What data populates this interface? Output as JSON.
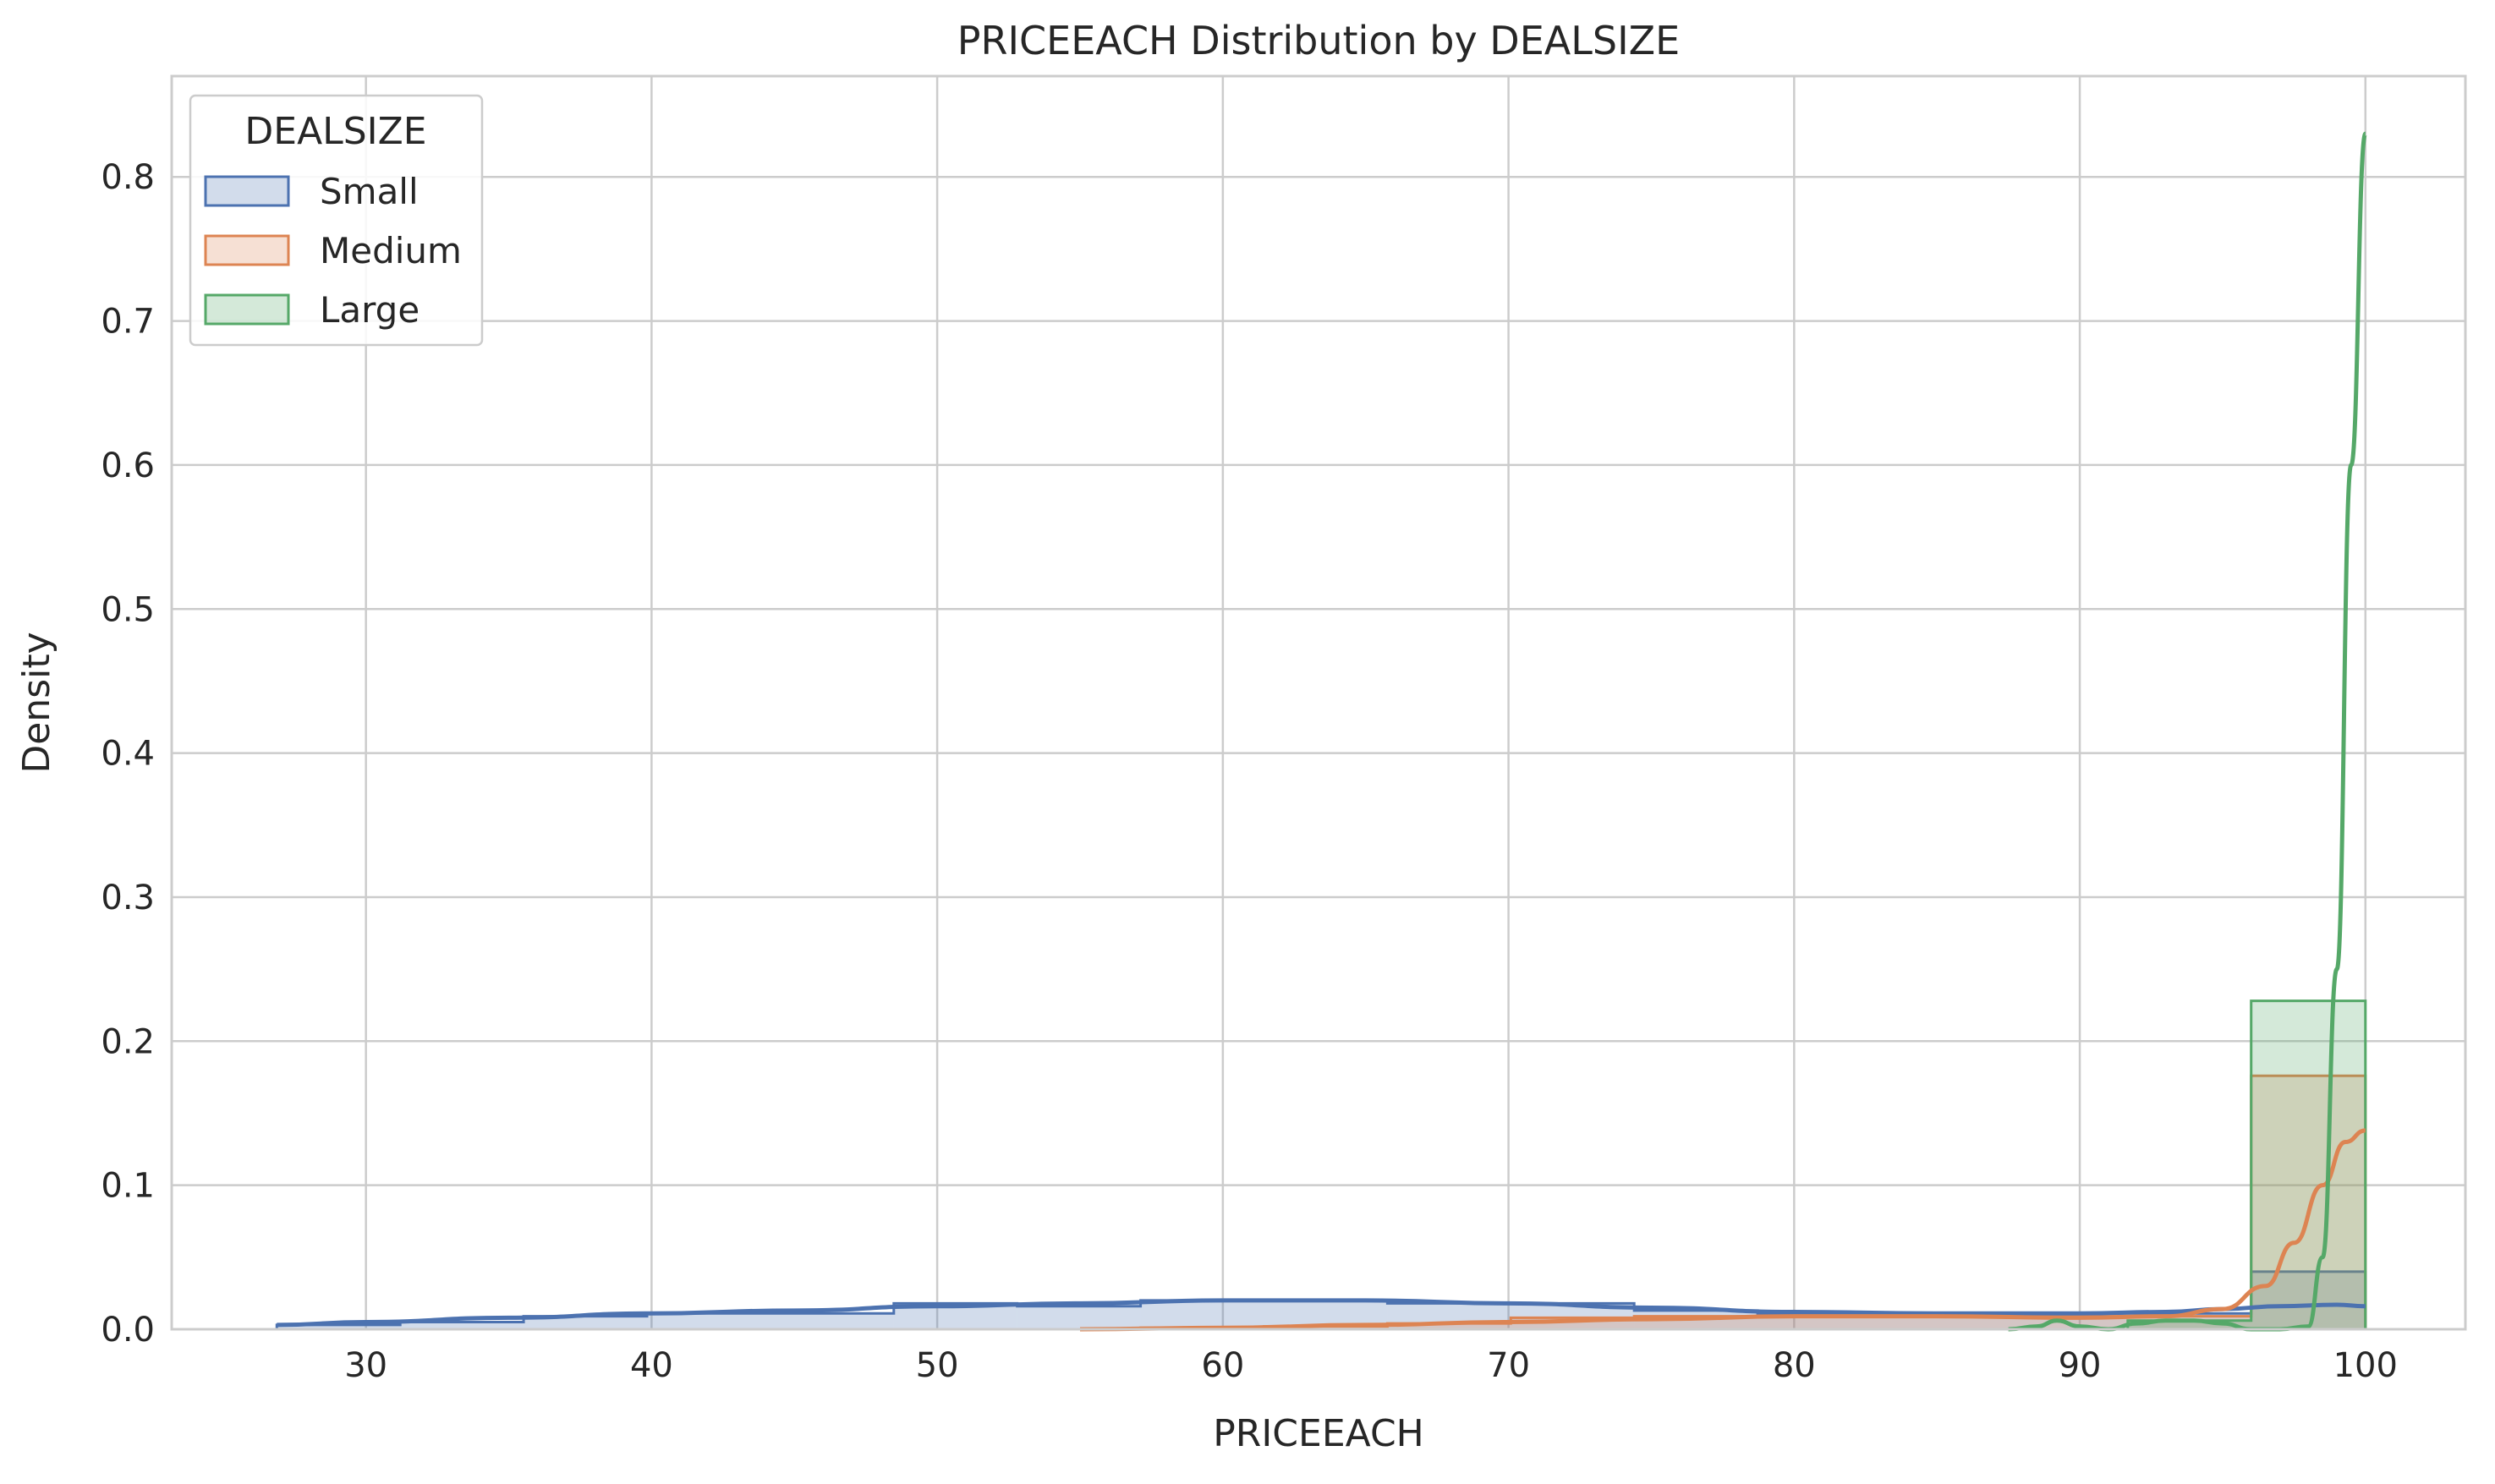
{
  "chart_data": {
    "type": "area",
    "title": "PRICEEACH Distribution by DEALSIZE",
    "xlabel": "PRICEEACH",
    "ylabel": "Density",
    "xlim": [
      23.2,
      103.5
    ],
    "ylim": [
      0,
      0.87
    ],
    "xticks": [
      30,
      40,
      50,
      60,
      70,
      80,
      90,
      100
    ],
    "yticks": [
      0.0,
      0.1,
      0.2,
      0.3,
      0.4,
      0.5,
      0.6,
      0.7,
      0.8
    ],
    "xtick_labels": [
      "30",
      "40",
      "50",
      "60",
      "70",
      "80",
      "90",
      "100"
    ],
    "ytick_labels": [
      "0.0",
      "0.1",
      "0.2",
      "0.3",
      "0.4",
      "0.5",
      "0.6",
      "0.7",
      "0.8"
    ],
    "grid": true,
    "legend": {
      "title": "DEALSIZE",
      "position": "top-left"
    },
    "bin_edges": [
      26.88,
      31.2,
      35.52,
      39.84,
      44.16,
      48.48,
      52.8,
      57.12,
      61.44,
      65.76,
      70.08,
      74.4,
      78.72,
      83.04,
      87.36,
      91.68,
      96.0,
      100.0
    ],
    "series": [
      {
        "name": "Small",
        "color": "#4c72b0",
        "hist": [
          0.003,
          0.005,
          0.009,
          0.011,
          0.011,
          0.018,
          0.016,
          0.02,
          0.02,
          0.018,
          0.018,
          0.013,
          0.011,
          0.011,
          0.011,
          0.011,
          0.04
        ],
        "kde_x": [
          26.88,
          30,
          35,
          40,
          45,
          50,
          55,
          60,
          65,
          70,
          75,
          80,
          85,
          90,
          93,
          95,
          97,
          99,
          100
        ],
        "kde_y": [
          0.003,
          0.005,
          0.008,
          0.011,
          0.013,
          0.016,
          0.018,
          0.02,
          0.02,
          0.018,
          0.015,
          0.012,
          0.011,
          0.011,
          0.012,
          0.014,
          0.016,
          0.017,
          0.016
        ]
      },
      {
        "name": "Medium",
        "color": "#dd8452",
        "hist": [
          0.0,
          0.0,
          0.0,
          0.0,
          0.0,
          0.0,
          0.0,
          0.001,
          0.002,
          0.004,
          0.008,
          0.009,
          0.009,
          0.009,
          0.009,
          0.009,
          0.176
        ],
        "kde_x": [
          55,
          60,
          65,
          70,
          75,
          80,
          85,
          90,
          93,
          95,
          96.5,
          97.5,
          98.5,
          99.3,
          100
        ],
        "kde_y": [
          0.0,
          0.001,
          0.003,
          0.005,
          0.007,
          0.009,
          0.009,
          0.008,
          0.009,
          0.014,
          0.03,
          0.06,
          0.1,
          0.13,
          0.138
        ]
      },
      {
        "name": "Large",
        "color": "#55a868",
        "hist": [
          0.0,
          0.0,
          0.0,
          0.0,
          0.0,
          0.0,
          0.0,
          0.0,
          0.0,
          0.0,
          0.0,
          0.0,
          0.0,
          0.0,
          0.0,
          0.006,
          0.228
        ],
        "kde_x": [
          87.5,
          88.5,
          89.2,
          90,
          91,
          92,
          93,
          94,
          95,
          96,
          97,
          98,
          98.5,
          99,
          99.5,
          100
        ],
        "kde_y": [
          0.0,
          0.002,
          0.006,
          0.002,
          0.0,
          0.004,
          0.006,
          0.006,
          0.004,
          0.0,
          0.0,
          0.002,
          0.05,
          0.25,
          0.6,
          0.83
        ]
      }
    ]
  }
}
